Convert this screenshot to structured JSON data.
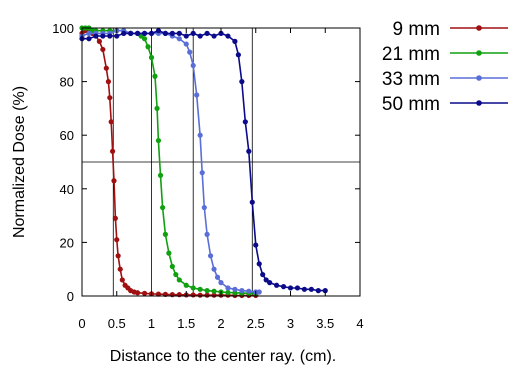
{
  "chart_data": {
    "type": "line",
    "title": "",
    "xlabel": "Distance to the center ray. (cm).",
    "ylabel": "Normalized Dose (%)",
    "xlim": [
      0,
      4
    ],
    "ylim": [
      0,
      100
    ],
    "xticks": [
      0,
      0.5,
      1,
      1.5,
      2,
      2.5,
      3,
      3.5,
      4
    ],
    "yticks": [
      0,
      20,
      40,
      60,
      80,
      100
    ],
    "grid": false,
    "legend_position": "top-right, outside plot",
    "reference_lines": {
      "horizontal_y": 50,
      "vertical_x": [
        0.45,
        1.0,
        1.6,
        2.45
      ]
    },
    "series": [
      {
        "name": "9 mm",
        "color": "#a01010",
        "x": [
          0,
          0.05,
          0.1,
          0.15,
          0.2,
          0.25,
          0.3,
          0.35,
          0.38,
          0.4,
          0.42,
          0.44,
          0.46,
          0.48,
          0.5,
          0.52,
          0.55,
          0.58,
          0.62,
          0.66,
          0.7,
          0.75,
          0.8,
          0.9,
          1.0,
          1.1,
          1.2,
          1.3,
          1.4,
          1.5,
          1.6,
          1.7,
          1.8,
          1.9,
          2.0,
          2.1,
          2.2,
          2.3,
          2.4,
          2.5
        ],
        "y": [
          98,
          99,
          99,
          98,
          97,
          95,
          92,
          85,
          80,
          74,
          65,
          54,
          43,
          29,
          21,
          15,
          10,
          6,
          4,
          3,
          2,
          1.5,
          1.2,
          1,
          0.8,
          0.7,
          0.6,
          0.5,
          0.5,
          0.4,
          0.4,
          0.3,
          0.3,
          0.3,
          0.3,
          0.3,
          0.2,
          0.2,
          0.2,
          0.2
        ]
      },
      {
        "name": "21 mm",
        "color": "#10a010",
        "x": [
          0,
          0.05,
          0.1,
          0.15,
          0.2,
          0.3,
          0.4,
          0.5,
          0.6,
          0.7,
          0.8,
          0.85,
          0.9,
          0.95,
          1.0,
          1.05,
          1.08,
          1.1,
          1.13,
          1.16,
          1.2,
          1.25,
          1.3,
          1.35,
          1.4,
          1.5,
          1.6,
          1.7,
          1.8,
          1.9,
          2.0,
          2.1,
          2.2,
          2.3,
          2.4,
          2.5
        ],
        "y": [
          100,
          100,
          100,
          99,
          99,
          99,
          99,
          99,
          99,
          98,
          98,
          97,
          96,
          93,
          89,
          82,
          70,
          58,
          45,
          33,
          23,
          16,
          11,
          8,
          6,
          4,
          3,
          2.5,
          2,
          1.8,
          1.5,
          1.3,
          1.2,
          1.1,
          1,
          1
        ]
      },
      {
        "name": "33 mm",
        "color": "#5a6ed8",
        "x": [
          0,
          0.1,
          0.2,
          0.3,
          0.4,
          0.5,
          0.6,
          0.7,
          0.8,
          0.9,
          1.0,
          1.1,
          1.2,
          1.3,
          1.4,
          1.5,
          1.55,
          1.6,
          1.65,
          1.7,
          1.73,
          1.76,
          1.8,
          1.85,
          1.9,
          1.95,
          2.0,
          2.1,
          2.2,
          2.3,
          2.4,
          2.5,
          2.55
        ],
        "y": [
          97,
          98,
          98,
          98,
          98,
          99,
          99,
          98,
          98,
          98,
          98,
          98,
          98,
          97,
          96,
          94,
          91,
          86,
          75,
          60,
          46,
          33,
          23,
          15,
          10,
          7,
          5,
          3,
          2.5,
          2,
          1.8,
          1.5,
          1.5
        ]
      },
      {
        "name": "50 mm",
        "color": "#0a0a8a",
        "x": [
          0,
          0.1,
          0.2,
          0.3,
          0.4,
          0.5,
          0.6,
          0.7,
          0.8,
          0.9,
          1.0,
          1.1,
          1.2,
          1.3,
          1.4,
          1.5,
          1.6,
          1.7,
          1.8,
          1.9,
          2.0,
          2.1,
          2.2,
          2.25,
          2.3,
          2.35,
          2.4,
          2.45,
          2.5,
          2.55,
          2.6,
          2.65,
          2.7,
          2.8,
          2.9,
          3.0,
          3.1,
          3.2,
          3.3,
          3.4,
          3.5
        ],
        "y": [
          96,
          96,
          97,
          97,
          97,
          97,
          98,
          98,
          98,
          98,
          98,
          99,
          98,
          98,
          98,
          97,
          98,
          97,
          98,
          97,
          98,
          97,
          95,
          90,
          80,
          65,
          54,
          35,
          19,
          12,
          8,
          6,
          5,
          4,
          3.5,
          3,
          3,
          2.5,
          2.5,
          2,
          2
        ]
      }
    ]
  }
}
